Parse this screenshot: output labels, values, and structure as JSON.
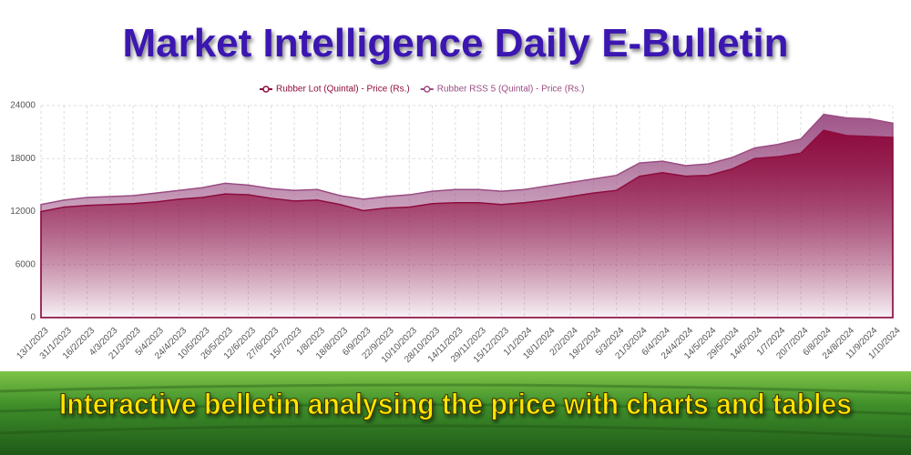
{
  "chart_data": {
    "type": "area",
    "title": "Market Intelligence Daily E-Bulletin",
    "categories": [
      "13/1/2023",
      "31/1/2023",
      "16/2/2023",
      "4/3/2023",
      "21/3/2023",
      "5/4/2023",
      "24/4/2023",
      "10/5/2023",
      "26/5/2023",
      "12/6/2023",
      "27/6/2023",
      "15/7/2023",
      "1/8/2023",
      "18/8/2023",
      "6/9/2023",
      "22/9/2023",
      "10/10/2023",
      "28/10/2023",
      "14/11/2023",
      "29/11/2023",
      "15/12/2023",
      "1/1/2024",
      "18/1/2024",
      "2/2/2024",
      "19/2/2024",
      "5/3/2024",
      "21/3/2024",
      "6/4/2024",
      "24/4/2024",
      "14/5/2024",
      "29/5/2024",
      "14/6/2024",
      "1/7/2024",
      "20/7/2024",
      "6/8/2024",
      "24/8/2024",
      "11/9/2024",
      "1/10/2024"
    ],
    "series": [
      {
        "name": "Rubber Lot (Quintal) - Price (Rs.)",
        "color": "#8e0c3e",
        "values": [
          12000,
          12500,
          12700,
          12800,
          12900,
          13100,
          13400,
          13600,
          14000,
          13900,
          13500,
          13200,
          13300,
          12800,
          12100,
          12400,
          12500,
          12900,
          13000,
          13000,
          12800,
          13000,
          13300,
          13700,
          14100,
          14400,
          16000,
          16400,
          16000,
          16100,
          16800,
          18000,
          18200,
          18600,
          21200,
          20600,
          20500,
          20400
        ]
      },
      {
        "name": "Rubber RSS 5 (Quintal) - Price (Rs.)",
        "color": "#9a4c82",
        "values": [
          12800,
          13300,
          13600,
          13700,
          13800,
          14100,
          14400,
          14700,
          15200,
          15000,
          14600,
          14400,
          14500,
          13800,
          13400,
          13700,
          13900,
          14300,
          14500,
          14500,
          14300,
          14500,
          14900,
          15300,
          15700,
          16100,
          17500,
          17700,
          17200,
          17400,
          18100,
          19200,
          19600,
          20200,
          23000,
          22600,
          22500,
          22000
        ]
      }
    ],
    "ylim": [
      0,
      24000
    ],
    "yticks": [
      0,
      6000,
      12000,
      18000,
      24000
    ],
    "grid": true,
    "legend": "top"
  },
  "banner": {
    "text": "Interactive belletin analysing the price with charts and tables"
  }
}
